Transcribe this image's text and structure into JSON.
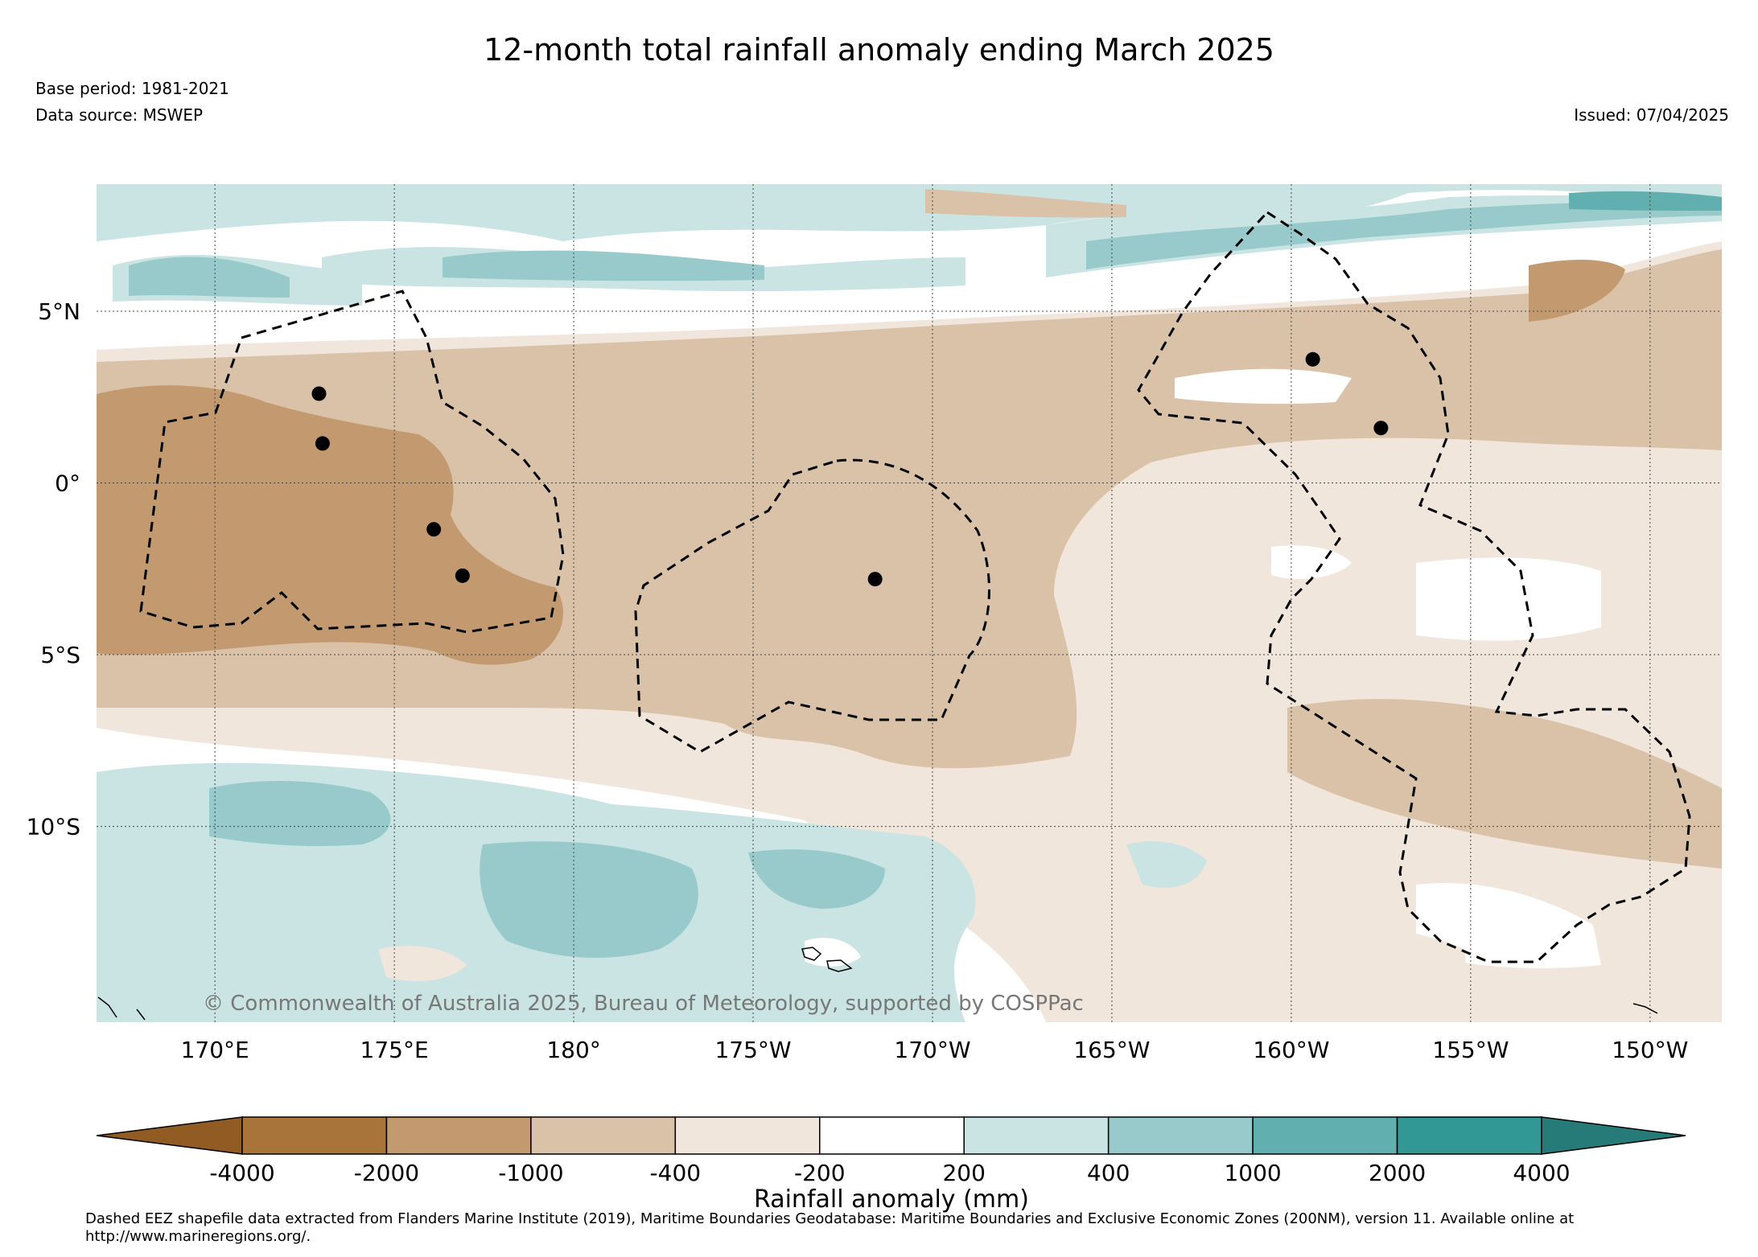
{
  "title": "12-month total rainfall anomaly ending March 2025",
  "base_period": "Base period: 1981-2021",
  "data_source": "Data source: MSWEP",
  "issued": "Issued: 07/04/2025",
  "copyright": "© Commonwealth of Australia 2025, Bureau of Meteorology, supported by COSPPac",
  "map": {
    "lon_range": [
      166.7,
      212.0
    ],
    "lat_range": [
      -15.7,
      8.7
    ],
    "lon_ticks": [
      {
        "value": 170,
        "label": "170°E"
      },
      {
        "value": 175,
        "label": "175°E"
      },
      {
        "value": 180,
        "label": "180°"
      },
      {
        "value": 185,
        "label": "175°W"
      },
      {
        "value": 190,
        "label": "170°W"
      },
      {
        "value": 195,
        "label": "165°W"
      },
      {
        "value": 200,
        "label": "160°W"
      },
      {
        "value": 205,
        "label": "155°W"
      },
      {
        "value": 210,
        "label": "150°W"
      }
    ],
    "lat_ticks": [
      {
        "value": 5,
        "label": "5°N"
      },
      {
        "value": 0,
        "label": "0°"
      },
      {
        "value": -5,
        "label": "5°S"
      },
      {
        "value": -10,
        "label": "10°S"
      }
    ],
    "stations": [
      {
        "lon": 172.9,
        "lat": 2.6
      },
      {
        "lon": 173.0,
        "lat": 1.15
      },
      {
        "lon": 176.1,
        "lat": -1.35
      },
      {
        "lon": 176.9,
        "lat": -2.7
      },
      {
        "lon": 188.4,
        "lat": -2.8
      },
      {
        "lon": 200.6,
        "lat": 3.6
      },
      {
        "lon": 202.5,
        "lat": 1.6
      }
    ]
  },
  "colorbar": {
    "title": "Rainfall anomaly (mm)",
    "bins": [
      {
        "color": "#a97439"
      },
      {
        "color": "#c39a70"
      },
      {
        "color": "#dac2a9"
      },
      {
        "color": "#f1e6dc"
      },
      {
        "color": "#ffffff"
      },
      {
        "color": "#c9e4e3"
      },
      {
        "color": "#99cacb"
      },
      {
        "color": "#62afb0"
      },
      {
        "color": "#329895"
      }
    ],
    "low_extend_color": "#915c24",
    "high_extend_color": "#267a77",
    "tick_labels": [
      "-4000",
      "-2000",
      "-1000",
      "-400",
      "-200",
      "200",
      "400",
      "1000",
      "2000",
      "4000"
    ]
  },
  "footnote": "Dashed EEZ shapefile data extracted from Flanders Marine Institute (2019), Maritime Boundaries Geodatabase: Maritime Boundaries and Exclusive Economic Zones (200NM), version 11. Available online at http://www.marineregions.org/."
}
